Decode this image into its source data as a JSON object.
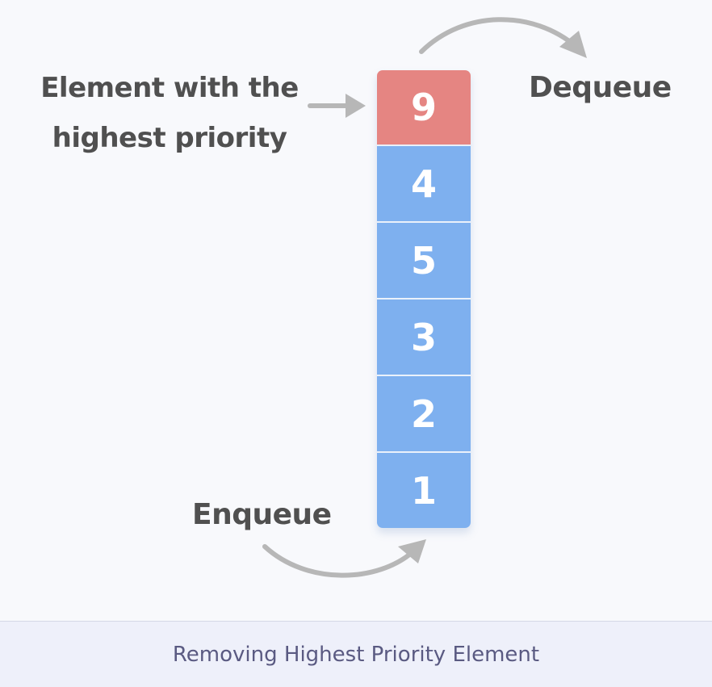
{
  "diagram": {
    "highest_label": [
      "Element with the",
      "highest priority"
    ],
    "dequeue_label": "Dequeue",
    "enqueue_label": "Enqueue",
    "queue": [
      {
        "value": "9",
        "highlighted": true
      },
      {
        "value": "4",
        "highlighted": false
      },
      {
        "value": "5",
        "highlighted": false
      },
      {
        "value": "3",
        "highlighted": false
      },
      {
        "value": "2",
        "highlighted": false
      },
      {
        "value": "1",
        "highlighted": false
      }
    ],
    "colors": {
      "highlight": "#e58582",
      "cell": "#7eb0ef",
      "arrow": "#b7b7b7",
      "text": "#505050"
    }
  },
  "caption": "Removing Highest Priority Element"
}
